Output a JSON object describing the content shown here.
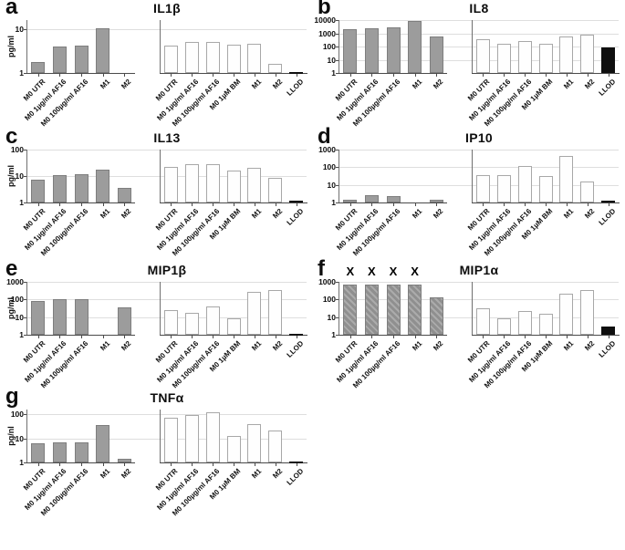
{
  "colors": {
    "gray_bar": "#9c9c9c",
    "open_bar": "#fefefe",
    "llod_bar": "#0f0f0f",
    "gridline": "#dedede"
  },
  "chart_data": [
    {
      "type": "bar",
      "letter": "a",
      "title": "IL1β",
      "ylabel": "pg/ml",
      "yscale": "log",
      "ymax": 16,
      "yticks": [
        1,
        10
      ],
      "groups": [
        {
          "name": "filled-bars",
          "style": "gray",
          "categories": [
            "M0 UTR",
            "M0 1µg/ml AF16",
            "M0 100µg/ml AF16",
            "M1",
            "M2"
          ],
          "values": [
            1.8,
            4.0,
            4.2,
            10.5,
            null
          ]
        },
        {
          "name": "open-bars",
          "style": "open",
          "categories": [
            "M0 UTR",
            "M0 1µg/ml AF16",
            "M0 100µg/ml AF16",
            "M0 1µM BM",
            "M1",
            "M2",
            "LLOD"
          ],
          "values": [
            4.2,
            5.0,
            5.0,
            4.3,
            4.7,
            1.6,
            1.05
          ],
          "styles": [
            "open",
            "open",
            "open",
            "open",
            "open",
            "open",
            "black"
          ]
        }
      ],
      "x_marks": []
    },
    {
      "type": "bar",
      "letter": "b",
      "title": "IL8",
      "ylabel": "",
      "yscale": "log",
      "ymax": 10000,
      "yticks": [
        1,
        10,
        100,
        1000,
        10000
      ],
      "groups": [
        {
          "name": "filled-bars",
          "style": "gray",
          "categories": [
            "M0 UTR",
            "M0 1µg/ml AF16",
            "M0 100µg/ml AF16",
            "M1",
            "M2"
          ],
          "values": [
            2000,
            2500,
            2800,
            8500,
            550
          ]
        },
        {
          "name": "open-bars",
          "style": "open",
          "categories": [
            "M0 UTR",
            "M0 1µg/ml AF16",
            "M0 100µg/ml AF16",
            "M0 1µM BM",
            "M1",
            "M2",
            "LLOD"
          ],
          "values": [
            380,
            170,
            280,
            170,
            600,
            800,
            90
          ],
          "styles": [
            "open",
            "open",
            "open",
            "open",
            "open",
            "open",
            "black"
          ]
        }
      ],
      "x_marks": []
    },
    {
      "type": "bar",
      "letter": "c",
      "title": "IL13",
      "ylabel": "pg/ml",
      "yscale": "log",
      "ymax": 100,
      "yticks": [
        1,
        10,
        100
      ],
      "groups": [
        {
          "name": "filled-bars",
          "style": "gray",
          "categories": [
            "M0 UTR",
            "M0 1µg/ml AF16",
            "M0 100µg/ml AF16",
            "M1",
            "M2"
          ],
          "values": [
            7,
            10.5,
            11.5,
            17,
            3.7
          ]
        },
        {
          "name": "open-bars",
          "style": "open",
          "categories": [
            "M0 UTR",
            "M0 1µg/ml AF16",
            "M0 100µg/ml AF16",
            "M0 1µM BM",
            "M1",
            "M2",
            "LLOD"
          ],
          "values": [
            23,
            28,
            28,
            16,
            20,
            8.5,
            1.2
          ],
          "styles": [
            "open",
            "open",
            "open",
            "open",
            "open",
            "open",
            "black"
          ]
        }
      ],
      "x_marks": []
    },
    {
      "type": "bar",
      "letter": "d",
      "title": "IP10",
      "ylabel": "",
      "yscale": "log",
      "ymax": 1000,
      "yticks": [
        1,
        10,
        100,
        1000
      ],
      "groups": [
        {
          "name": "filled-bars",
          "style": "gray",
          "categories": [
            "M0 UTR",
            "M0 1µg/ml AF16",
            "M0 100µg/ml AF16",
            "M1",
            "M2"
          ],
          "values": [
            1.5,
            2.6,
            2.2,
            null,
            1.4
          ]
        },
        {
          "name": "open-bars",
          "style": "open",
          "categories": [
            "M0 UTR",
            "M0 1µg/ml AF16",
            "M0 100µg/ml AF16",
            "M0 1µM BM",
            "M1",
            "M2",
            "LLOD"
          ],
          "values": [
            35,
            37,
            115,
            32,
            450,
            15,
            1.3
          ],
          "styles": [
            "open",
            "open",
            "open",
            "open",
            "open",
            "open",
            "black"
          ]
        }
      ],
      "x_marks": []
    },
    {
      "type": "bar",
      "letter": "e",
      "title": "MIP1β",
      "ylabel": "pg/ml",
      "yscale": "log",
      "ymax": 1000,
      "yticks": [
        1,
        10,
        100,
        1000
      ],
      "groups": [
        {
          "name": "filled-bars",
          "style": "gray",
          "categories": [
            "M0 UTR",
            "M0 1µg/ml AF16",
            "M0 100µg/ml AF16",
            "M1",
            "M2"
          ],
          "values": [
            85,
            100,
            105,
            null,
            35
          ]
        },
        {
          "name": "open-bars",
          "style": "open",
          "categories": [
            "M0 UTR",
            "M0 1µg/ml AF16",
            "M0 100µg/ml AF16",
            "M0 1µM BM",
            "M1",
            "M2",
            "LLOD"
          ],
          "values": [
            25,
            18,
            38,
            9,
            280,
            340,
            1.15
          ],
          "styles": [
            "open",
            "open",
            "open",
            "open",
            "open",
            "open",
            "black"
          ]
        }
      ],
      "x_marks": []
    },
    {
      "type": "bar",
      "letter": "f",
      "title": "MIP1α",
      "ylabel": "",
      "yscale": "log",
      "ymax": 1000,
      "yticks": [
        1,
        10,
        100,
        1000
      ],
      "groups": [
        {
          "name": "filled-bars",
          "style": "hatched",
          "categories": [
            "M0 UTR",
            "M0 1µg/ml AF16",
            "M0 100µg/ml AF16",
            "M1",
            "M2"
          ],
          "values": [
            700,
            700,
            700,
            700,
            130
          ]
        },
        {
          "name": "open-bars",
          "style": "open",
          "categories": [
            "M0 UTR",
            "M0 1µg/ml AF16",
            "M0 100µg/ml AF16",
            "M0 1µM BM",
            "M1",
            "M2",
            "LLOD"
          ],
          "values": [
            30,
            9,
            22,
            16,
            220,
            330,
            3
          ],
          "styles": [
            "open",
            "open",
            "open",
            "open",
            "open",
            "open",
            "black"
          ]
        }
      ],
      "x_marks": [
        0,
        1,
        2,
        3
      ],
      "x_mark_symbol": "X"
    },
    {
      "type": "bar",
      "letter": "g",
      "title": "TNFα",
      "ylabel": "pg/nl",
      "yscale": "log",
      "ymax": 160,
      "yticks": [
        1,
        10,
        100
      ],
      "groups": [
        {
          "name": "filled-bars",
          "style": "gray",
          "categories": [
            "M0 UTR",
            "M0 1µg/ml AF16",
            "M0 100µg/ml AF16",
            "M1",
            "M2"
          ],
          "values": [
            6.5,
            7,
            7,
            37,
            1.4
          ]
        },
        {
          "name": "open-bars",
          "style": "open",
          "categories": [
            "M0 UTR",
            "M0 1µg/ml AF16",
            "M0 100µg/ml AF16",
            "M0 1µM BM",
            "M1",
            "M2",
            "LLOD"
          ],
          "values": [
            70,
            95,
            125,
            13,
            38,
            22,
            1.05
          ],
          "styles": [
            "open",
            "open",
            "open",
            "open",
            "open",
            "open",
            "black"
          ]
        }
      ],
      "x_marks": []
    }
  ]
}
